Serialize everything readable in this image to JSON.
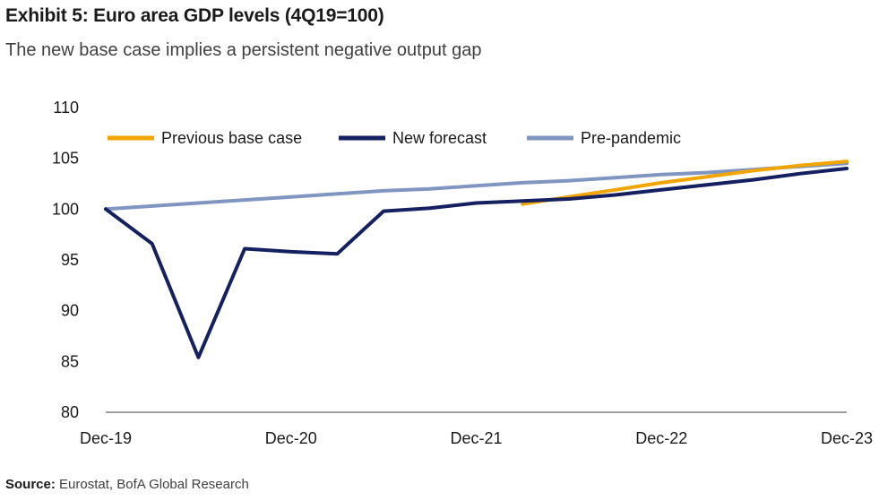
{
  "header": {
    "title": "Exhibit 5: Euro area GDP levels (4Q19=100)",
    "subtitle": "The new base case implies a persistent negative output gap"
  },
  "footer": {
    "source_label": "Source:",
    "source_text": "Eurostat, BofA Global Research"
  },
  "colors": {
    "previous": "#f0a500",
    "new": "#14205f",
    "prepandemic": "#8096c0",
    "axis": "#7f7f7f"
  },
  "chart_data": {
    "type": "line",
    "title": "Exhibit 5: Euro area GDP levels (4Q19=100)",
    "subtitle": "The new base case implies a persistent negative output gap",
    "xlabel": "",
    "ylabel": "",
    "x": [
      "Dec-19",
      "Mar-20",
      "Jun-20",
      "Sep-20",
      "Dec-20",
      "Mar-21",
      "Jun-21",
      "Sep-21",
      "Dec-21",
      "Mar-22",
      "Jun-22",
      "Sep-22",
      "Dec-22",
      "Mar-23",
      "Jun-23",
      "Sep-23",
      "Dec-23"
    ],
    "x_tick_labels": [
      "Dec-19",
      "Dec-20",
      "Dec-21",
      "Dec-22",
      "Dec-23"
    ],
    "ylim": [
      80,
      110
    ],
    "y_ticks": [
      80,
      85,
      90,
      95,
      100,
      105,
      110
    ],
    "legend_position": "top",
    "grid": false,
    "series": [
      {
        "name": "Previous base case",
        "key": "previous",
        "values": [
          null,
          null,
          null,
          null,
          null,
          null,
          null,
          null,
          null,
          100.5,
          101.2,
          101.9,
          102.6,
          103.2,
          103.8,
          104.3,
          104.7
        ]
      },
      {
        "name": "New forecast",
        "key": "new",
        "values": [
          100.0,
          96.6,
          85.4,
          96.1,
          95.8,
          95.6,
          99.8,
          100.1,
          100.6,
          100.8,
          101.0,
          101.4,
          101.9,
          102.4,
          102.9,
          103.5,
          104.0
        ]
      },
      {
        "name": "Pre-pandemic",
        "key": "prepandemic",
        "values": [
          100.0,
          100.3,
          100.6,
          100.9,
          101.2,
          101.5,
          101.8,
          102.0,
          102.3,
          102.6,
          102.8,
          103.1,
          103.4,
          103.6,
          103.9,
          104.2,
          104.5
        ]
      }
    ]
  }
}
